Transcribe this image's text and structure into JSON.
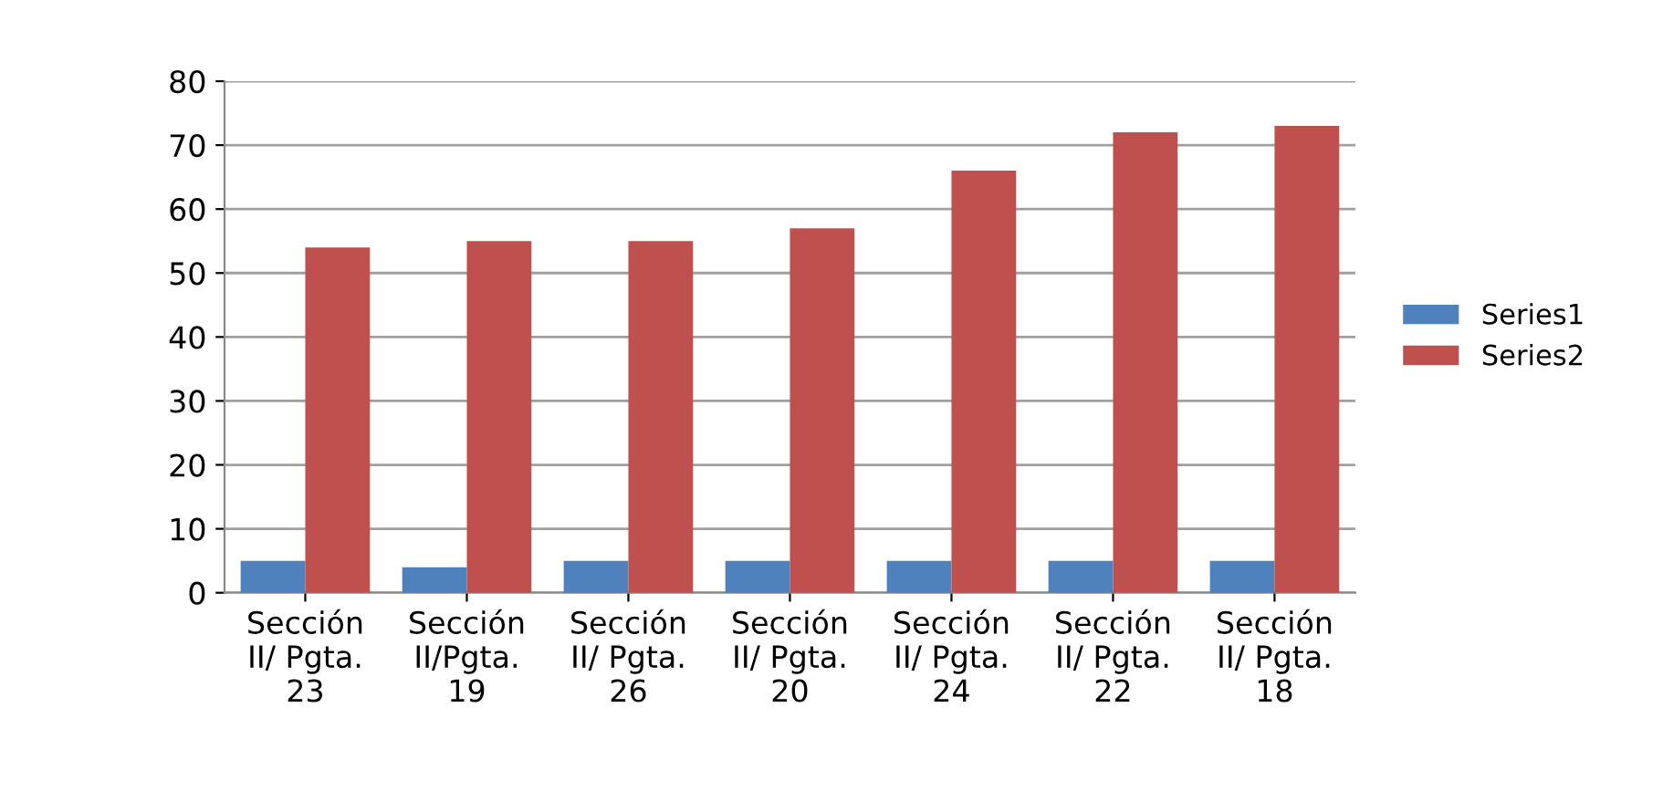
{
  "chart_data": {
    "type": "bar",
    "categories": [
      "Sección\nII/ Pgta.\n23",
      "Sección\nII/Pgta.\n19",
      "Sección\nII/ Pgta.\n26",
      "Sección\nII/ Pgta.\n20",
      "Sección\nII/ Pgta.\n24",
      "Sección\nII/ Pgta.\n22",
      "Sección\nII/ Pgta.\n18"
    ],
    "series": [
      {
        "name": "Series1",
        "color": "#4f81bd",
        "values": [
          5,
          4,
          5,
          5,
          5,
          5,
          5
        ]
      },
      {
        "name": "Series2",
        "color": "#c0504d",
        "values": [
          54,
          55,
          55,
          57,
          66,
          72,
          73
        ]
      }
    ],
    "ylim": [
      0,
      80
    ],
    "yticks": [
      0,
      10,
      20,
      30,
      40,
      50,
      60,
      70,
      80
    ],
    "grid": "y",
    "legend": "right"
  }
}
